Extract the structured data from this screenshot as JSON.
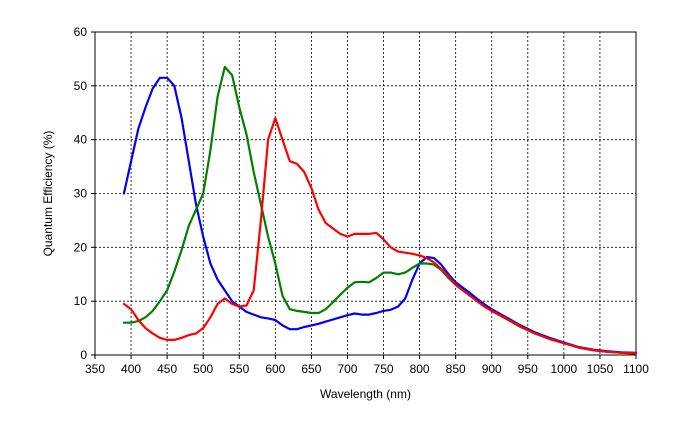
{
  "chart_data": {
    "type": "line",
    "title": "",
    "xlabel": "Wavelength (nm)",
    "ylabel": "Quantum Efficiency (%)",
    "xlim": [
      350,
      1100
    ],
    "ylim": [
      0,
      60
    ],
    "x_ticks": [
      350,
      400,
      450,
      500,
      550,
      600,
      650,
      700,
      750,
      800,
      850,
      900,
      950,
      1000,
      1050,
      1100
    ],
    "y_ticks": [
      0,
      10,
      20,
      30,
      40,
      50,
      60
    ],
    "grid": true,
    "legend": "none",
    "series": [
      {
        "color": "#0000ff",
        "points": [
          [
            390,
            30
          ],
          [
            400,
            36
          ],
          [
            410,
            42
          ],
          [
            420,
            46
          ],
          [
            430,
            49.5
          ],
          [
            440,
            51.5
          ],
          [
            450,
            51.5
          ],
          [
            460,
            50
          ],
          [
            470,
            44
          ],
          [
            480,
            36
          ],
          [
            490,
            28
          ],
          [
            500,
            22
          ],
          [
            510,
            17
          ],
          [
            520,
            14
          ],
          [
            530,
            12
          ],
          [
            540,
            10
          ],
          [
            550,
            9
          ],
          [
            560,
            8
          ],
          [
            570,
            7.5
          ],
          [
            580,
            7
          ],
          [
            590,
            6.8
          ],
          [
            600,
            6.5
          ],
          [
            610,
            5.5
          ],
          [
            620,
            4.8
          ],
          [
            630,
            4.8
          ],
          [
            640,
            5.2
          ],
          [
            650,
            5.5
          ],
          [
            660,
            5.8
          ],
          [
            670,
            6.2
          ],
          [
            680,
            6.6
          ],
          [
            690,
            7.0
          ],
          [
            700,
            7.4
          ],
          [
            710,
            7.7
          ],
          [
            720,
            7.5
          ],
          [
            730,
            7.5
          ],
          [
            740,
            7.8
          ],
          [
            750,
            8.2
          ],
          [
            760,
            8.4
          ],
          [
            770,
            9
          ],
          [
            780,
            10.5
          ],
          [
            790,
            14
          ],
          [
            800,
            17
          ],
          [
            810,
            18.2
          ],
          [
            820,
            18
          ],
          [
            830,
            16.8
          ],
          [
            840,
            15
          ],
          [
            850,
            13.5
          ],
          [
            860,
            12.5
          ],
          [
            870,
            11.5
          ],
          [
            880,
            10.4
          ],
          [
            890,
            9.4
          ],
          [
            900,
            8.5
          ],
          [
            920,
            7
          ],
          [
            940,
            5.5
          ],
          [
            960,
            4.2
          ],
          [
            980,
            3.2
          ],
          [
            1000,
            2.3
          ],
          [
            1020,
            1.5
          ],
          [
            1040,
            1.0
          ],
          [
            1060,
            0.7
          ],
          [
            1080,
            0.5
          ],
          [
            1100,
            0.4
          ]
        ]
      },
      {
        "color": "#008000",
        "points": [
          [
            390,
            6
          ],
          [
            400,
            6
          ],
          [
            410,
            6.3
          ],
          [
            420,
            7
          ],
          [
            430,
            8.2
          ],
          [
            440,
            10
          ],
          [
            450,
            12
          ],
          [
            460,
            15.5
          ],
          [
            470,
            19.5
          ],
          [
            480,
            24
          ],
          [
            490,
            27
          ],
          [
            500,
            30
          ],
          [
            510,
            38
          ],
          [
            520,
            48
          ],
          [
            530,
            53.5
          ],
          [
            540,
            52
          ],
          [
            550,
            46
          ],
          [
            560,
            41
          ],
          [
            570,
            34
          ],
          [
            580,
            28
          ],
          [
            590,
            22
          ],
          [
            600,
            17
          ],
          [
            610,
            11
          ],
          [
            620,
            8.5
          ],
          [
            630,
            8.2
          ],
          [
            640,
            8
          ],
          [
            650,
            7.8
          ],
          [
            660,
            7.8
          ],
          [
            670,
            8.5
          ],
          [
            680,
            9.8
          ],
          [
            690,
            11.2
          ],
          [
            700,
            12.5
          ],
          [
            710,
            13.5
          ],
          [
            720,
            13.6
          ],
          [
            730,
            13.5
          ],
          [
            740,
            14.3
          ],
          [
            750,
            15.3
          ],
          [
            760,
            15.3
          ],
          [
            770,
            15
          ],
          [
            780,
            15.3
          ],
          [
            790,
            16.2
          ],
          [
            800,
            17
          ],
          [
            810,
            17
          ],
          [
            820,
            16.8
          ],
          [
            830,
            15.8
          ],
          [
            840,
            14.3
          ],
          [
            850,
            13
          ],
          [
            860,
            12
          ],
          [
            870,
            11
          ],
          [
            880,
            10
          ],
          [
            890,
            9
          ],
          [
            900,
            8.2
          ],
          [
            920,
            6.7
          ],
          [
            940,
            5.2
          ],
          [
            960,
            4
          ],
          [
            980,
            3
          ],
          [
            1000,
            2.2
          ],
          [
            1020,
            1.4
          ],
          [
            1040,
            0.9
          ],
          [
            1060,
            0.6
          ],
          [
            1080,
            0.4
          ],
          [
            1100,
            0.3
          ]
        ]
      },
      {
        "color": "#ff0000",
        "points": [
          [
            390,
            9.5
          ],
          [
            400,
            8.5
          ],
          [
            410,
            6.5
          ],
          [
            420,
            5
          ],
          [
            430,
            4
          ],
          [
            440,
            3.2
          ],
          [
            450,
            2.8
          ],
          [
            460,
            2.8
          ],
          [
            470,
            3.2
          ],
          [
            480,
            3.7
          ],
          [
            490,
            4
          ],
          [
            500,
            5
          ],
          [
            510,
            7
          ],
          [
            520,
            9.5
          ],
          [
            530,
            10.5
          ],
          [
            540,
            9.5
          ],
          [
            550,
            9
          ],
          [
            560,
            9.2
          ],
          [
            570,
            12
          ],
          [
            580,
            25
          ],
          [
            590,
            40
          ],
          [
            600,
            44
          ],
          [
            610,
            40
          ],
          [
            620,
            36
          ],
          [
            630,
            35.5
          ],
          [
            640,
            34
          ],
          [
            650,
            31
          ],
          [
            660,
            27
          ],
          [
            670,
            24.5
          ],
          [
            680,
            23.5
          ],
          [
            690,
            22.5
          ],
          [
            700,
            22
          ],
          [
            710,
            22.5
          ],
          [
            720,
            22.5
          ],
          [
            730,
            22.5
          ],
          [
            740,
            22.7
          ],
          [
            750,
            21.5
          ],
          [
            760,
            20
          ],
          [
            770,
            19.2
          ],
          [
            780,
            19
          ],
          [
            790,
            18.8
          ],
          [
            800,
            18.5
          ],
          [
            810,
            18
          ],
          [
            820,
            17.2
          ],
          [
            830,
            16
          ],
          [
            840,
            14.6
          ],
          [
            850,
            13
          ],
          [
            860,
            12
          ],
          [
            870,
            11
          ],
          [
            880,
            10
          ],
          [
            890,
            9
          ],
          [
            900,
            8.2
          ],
          [
            920,
            6.8
          ],
          [
            940,
            5.3
          ],
          [
            960,
            4
          ],
          [
            980,
            3
          ],
          [
            1000,
            2.2
          ],
          [
            1020,
            1.4
          ],
          [
            1040,
            0.9
          ],
          [
            1060,
            0.6
          ],
          [
            1080,
            0.4
          ],
          [
            1100,
            0.3
          ]
        ]
      }
    ]
  }
}
